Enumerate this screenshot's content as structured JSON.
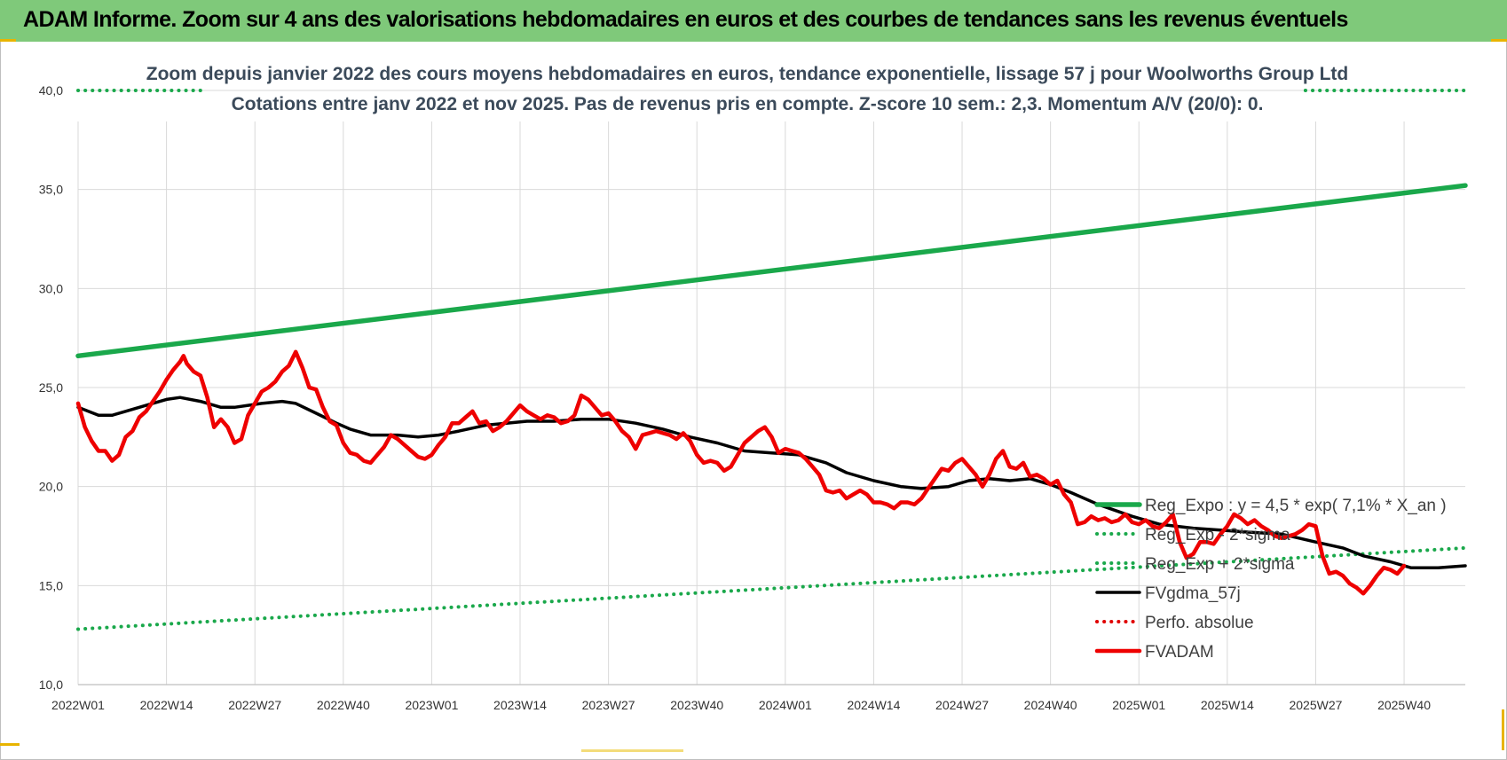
{
  "header": {
    "title": "ADAM Informe. Zoom sur 4 ans des valorisations hebdomadaires en euros et des courbes de tendances sans les revenus éventuels"
  },
  "chart_data": {
    "type": "line",
    "title_lines": [
      "Zoom depuis janvier 2022 des cours moyens hebdomadaires en euros, tendance exponentielle, lissage 57 j pour Woolworths Group Ltd",
      "Cotations entre janv 2022 et nov 2025. Pas de revenus pris en compte. Z-score 10 sem.: 2,3. Momentum A/V (20/0): 0."
    ],
    "ylim": [
      10,
      40
    ],
    "y_ticks": [
      "10,0",
      "15,0",
      "20,0",
      "25,0",
      "30,0",
      "35,0",
      "40,0"
    ],
    "y_tick_values": [
      10,
      15,
      20,
      25,
      30,
      35,
      40
    ],
    "x_range_weeks": [
      0,
      204
    ],
    "x_ticks": [
      "2022W01",
      "2022W14",
      "2022W27",
      "2022W40",
      "2023W01",
      "2023W14",
      "2023W27",
      "2023W40",
      "2024W01",
      "2024W14",
      "2024W27",
      "2024W40",
      "2025W01",
      "2025W14",
      "2025W27",
      "2025W40"
    ],
    "x_tick_weeks": [
      0,
      13,
      26,
      39,
      52,
      65,
      78,
      91,
      104,
      117,
      130,
      143,
      156,
      169,
      182,
      195
    ],
    "grid": true,
    "legend_position": "bottom-right",
    "colors": {
      "reg_expo": "#1aa84b",
      "sigma_bands": "#1aa84b",
      "fvgdma": "#000000",
      "perfo": "#e00000",
      "fvadam": "#ee0000",
      "accent": "#e8b400"
    },
    "series": [
      {
        "name": "Reg_Expo : y = 4,5 * exp( 7,1% *  X_an )",
        "style": "solid-thick",
        "color": "#1aa84b",
        "x_weeks": [
          0,
          204
        ],
        "values": [
          26.6,
          35.2
        ]
      },
      {
        "name": "Reg_Exp - 2*sigma",
        "style": "dotted",
        "color": "#1aa84b",
        "x_weeks": [
          0,
          204
        ],
        "values": [
          12.8,
          16.9
        ]
      },
      {
        "name": "Reg_Exp + 2*sigma",
        "style": "dotted",
        "color": "#1aa84b",
        "segments": [
          {
            "x_weeks": [
              0,
              18.5
            ],
            "values": [
              40.0,
              40.0
            ]
          },
          {
            "x_weeks": [
              180.5,
              204
            ],
            "values": [
              40.0,
              40.0
            ]
          }
        ]
      },
      {
        "name": "FVgdma_57j",
        "style": "solid",
        "color": "#000000",
        "points": [
          [
            0,
            24.0
          ],
          [
            3,
            23.6
          ],
          [
            5,
            23.6
          ],
          [
            7,
            23.8
          ],
          [
            10,
            24.1
          ],
          [
            13,
            24.4
          ],
          [
            15,
            24.5
          ],
          [
            18,
            24.3
          ],
          [
            21,
            24.0
          ],
          [
            23,
            24.0
          ],
          [
            25,
            24.1
          ],
          [
            27,
            24.2
          ],
          [
            30,
            24.3
          ],
          [
            32,
            24.2
          ],
          [
            35,
            23.7
          ],
          [
            38,
            23.2
          ],
          [
            40,
            22.9
          ],
          [
            43,
            22.6
          ],
          [
            47,
            22.6
          ],
          [
            50,
            22.5
          ],
          [
            53,
            22.6
          ],
          [
            56,
            22.8
          ],
          [
            60,
            23.1
          ],
          [
            63,
            23.2
          ],
          [
            66,
            23.3
          ],
          [
            70,
            23.3
          ],
          [
            74,
            23.4
          ],
          [
            78,
            23.4
          ],
          [
            82,
            23.2
          ],
          [
            86,
            22.9
          ],
          [
            90,
            22.5
          ],
          [
            94,
            22.2
          ],
          [
            98,
            21.8
          ],
          [
            102,
            21.7
          ],
          [
            106,
            21.6
          ],
          [
            110,
            21.2
          ],
          [
            113,
            20.7
          ],
          [
            117,
            20.3
          ],
          [
            121,
            20.0
          ],
          [
            124,
            19.9
          ],
          [
            128,
            20.0
          ],
          [
            131,
            20.3
          ],
          [
            134,
            20.4
          ],
          [
            137,
            20.3
          ],
          [
            140,
            20.4
          ],
          [
            143,
            20.1
          ],
          [
            146,
            19.7
          ],
          [
            150,
            19.1
          ],
          [
            155,
            18.5
          ],
          [
            159,
            18.1
          ],
          [
            164,
            17.9
          ],
          [
            168,
            17.8
          ],
          [
            172,
            17.7
          ],
          [
            177,
            17.6
          ],
          [
            182,
            17.2
          ],
          [
            186,
            16.9
          ],
          [
            189,
            16.5
          ],
          [
            193,
            16.2
          ],
          [
            196,
            15.9
          ],
          [
            200,
            15.9
          ],
          [
            204,
            16.0
          ]
        ]
      },
      {
        "name": "Perfo. absolue",
        "style": "dotted",
        "color": "#e00000",
        "points": []
      },
      {
        "name": "FVADAM",
        "style": "solid-thick",
        "color": "#ee0000",
        "points": [
          [
            0,
            24.2
          ],
          [
            1,
            23.0
          ],
          [
            2,
            22.3
          ],
          [
            3,
            21.8
          ],
          [
            4,
            21.8
          ],
          [
            5,
            21.3
          ],
          [
            6,
            21.6
          ],
          [
            7,
            22.5
          ],
          [
            8,
            22.8
          ],
          [
            9,
            23.5
          ],
          [
            10,
            23.8
          ],
          [
            11,
            24.3
          ],
          [
            12,
            24.8
          ],
          [
            13,
            25.4
          ],
          [
            14,
            25.9
          ],
          [
            15,
            26.3
          ],
          [
            15.5,
            26.6
          ],
          [
            16,
            26.2
          ],
          [
            17,
            25.8
          ],
          [
            18,
            25.6
          ],
          [
            19,
            24.5
          ],
          [
            20,
            23.0
          ],
          [
            21,
            23.4
          ],
          [
            22,
            23.0
          ],
          [
            23,
            22.2
          ],
          [
            24,
            22.4
          ],
          [
            25,
            23.6
          ],
          [
            26,
            24.2
          ],
          [
            27,
            24.8
          ],
          [
            28,
            25.0
          ],
          [
            29,
            25.3
          ],
          [
            30,
            25.8
          ],
          [
            31,
            26.1
          ],
          [
            32,
            26.8
          ],
          [
            33,
            26.0
          ],
          [
            34,
            25.0
          ],
          [
            35,
            24.9
          ],
          [
            36,
            24.0
          ],
          [
            37,
            23.3
          ],
          [
            38,
            23.1
          ],
          [
            39,
            22.2
          ],
          [
            40,
            21.7
          ],
          [
            41,
            21.6
          ],
          [
            42,
            21.3
          ],
          [
            43,
            21.2
          ],
          [
            44,
            21.6
          ],
          [
            45,
            22.0
          ],
          [
            46,
            22.6
          ],
          [
            47,
            22.4
          ],
          [
            48,
            22.1
          ],
          [
            49,
            21.8
          ],
          [
            50,
            21.5
          ],
          [
            51,
            21.4
          ],
          [
            52,
            21.6
          ],
          [
            53,
            22.1
          ],
          [
            54,
            22.5
          ],
          [
            55,
            23.2
          ],
          [
            56,
            23.2
          ],
          [
            57,
            23.5
          ],
          [
            58,
            23.8
          ],
          [
            59,
            23.2
          ],
          [
            60,
            23.3
          ],
          [
            61,
            22.8
          ],
          [
            62,
            23.0
          ],
          [
            63,
            23.3
          ],
          [
            64,
            23.7
          ],
          [
            65,
            24.1
          ],
          [
            66,
            23.8
          ],
          [
            67,
            23.6
          ],
          [
            68,
            23.4
          ],
          [
            69,
            23.6
          ],
          [
            70,
            23.5
          ],
          [
            71,
            23.2
          ],
          [
            72,
            23.3
          ],
          [
            73,
            23.6
          ],
          [
            74,
            24.6
          ],
          [
            75,
            24.4
          ],
          [
            76,
            24.0
          ],
          [
            77,
            23.6
          ],
          [
            78,
            23.7
          ],
          [
            79,
            23.3
          ],
          [
            80,
            22.8
          ],
          [
            81,
            22.5
          ],
          [
            82,
            21.9
          ],
          [
            83,
            22.6
          ],
          [
            84,
            22.7
          ],
          [
            85,
            22.8
          ],
          [
            86,
            22.7
          ],
          [
            87,
            22.6
          ],
          [
            88,
            22.4
          ],
          [
            89,
            22.7
          ],
          [
            90,
            22.3
          ],
          [
            91,
            21.6
          ],
          [
            92,
            21.2
          ],
          [
            93,
            21.3
          ],
          [
            94,
            21.2
          ],
          [
            95,
            20.8
          ],
          [
            96,
            21.0
          ],
          [
            97,
            21.6
          ],
          [
            98,
            22.2
          ],
          [
            99,
            22.5
          ],
          [
            100,
            22.8
          ],
          [
            101,
            23.0
          ],
          [
            102,
            22.5
          ],
          [
            103,
            21.7
          ],
          [
            104,
            21.9
          ],
          [
            105,
            21.8
          ],
          [
            106,
            21.7
          ],
          [
            107,
            21.4
          ],
          [
            108,
            21.0
          ],
          [
            109,
            20.6
          ],
          [
            110,
            19.8
          ],
          [
            111,
            19.7
          ],
          [
            112,
            19.8
          ],
          [
            113,
            19.4
          ],
          [
            114,
            19.6
          ],
          [
            115,
            19.8
          ],
          [
            116,
            19.6
          ],
          [
            117,
            19.2
          ],
          [
            118,
            19.2
          ],
          [
            119,
            19.1
          ],
          [
            120,
            18.9
          ],
          [
            121,
            19.2
          ],
          [
            122,
            19.2
          ],
          [
            123,
            19.1
          ],
          [
            124,
            19.4
          ],
          [
            125,
            19.9
          ],
          [
            126,
            20.4
          ],
          [
            127,
            20.9
          ],
          [
            128,
            20.8
          ],
          [
            129,
            21.2
          ],
          [
            130,
            21.4
          ],
          [
            131,
            21.0
          ],
          [
            132,
            20.6
          ],
          [
            133,
            20.0
          ],
          [
            134,
            20.6
          ],
          [
            135,
            21.4
          ],
          [
            136,
            21.8
          ],
          [
            137,
            21.0
          ],
          [
            138,
            20.9
          ],
          [
            139,
            21.2
          ],
          [
            140,
            20.5
          ],
          [
            141,
            20.6
          ],
          [
            142,
            20.4
          ],
          [
            143,
            20.1
          ],
          [
            144,
            20.3
          ],
          [
            145,
            19.6
          ],
          [
            146,
            19.2
          ],
          [
            147,
            18.1
          ],
          [
            148,
            18.2
          ],
          [
            149,
            18.5
          ],
          [
            150,
            18.3
          ],
          [
            151,
            18.4
          ],
          [
            152,
            18.2
          ],
          [
            153,
            18.3
          ],
          [
            154,
            18.6
          ],
          [
            155,
            18.2
          ],
          [
            156,
            18.1
          ],
          [
            157,
            18.3
          ],
          [
            158,
            18.0
          ],
          [
            159,
            17.9
          ],
          [
            160,
            18.2
          ],
          [
            161,
            18.6
          ],
          [
            162,
            17.2
          ],
          [
            163,
            16.4
          ],
          [
            164,
            16.6
          ],
          [
            165,
            17.2
          ],
          [
            166,
            17.2
          ],
          [
            167,
            17.1
          ],
          [
            168,
            17.6
          ],
          [
            169,
            18.0
          ],
          [
            170,
            18.6
          ],
          [
            171,
            18.4
          ],
          [
            172,
            18.1
          ],
          [
            173,
            18.3
          ],
          [
            174,
            18.0
          ],
          [
            175,
            17.8
          ],
          [
            176,
            17.5
          ],
          [
            177,
            17.4
          ],
          [
            178,
            17.5
          ],
          [
            179,
            17.6
          ],
          [
            180,
            17.8
          ],
          [
            181,
            18.1
          ],
          [
            182,
            18.0
          ],
          [
            183,
            16.5
          ],
          [
            184,
            15.6
          ],
          [
            185,
            15.7
          ],
          [
            186,
            15.5
          ],
          [
            187,
            15.1
          ],
          [
            188,
            14.9
          ],
          [
            189,
            14.6
          ],
          [
            190,
            15.0
          ],
          [
            191,
            15.5
          ],
          [
            192,
            15.9
          ],
          [
            193,
            15.8
          ],
          [
            194,
            15.6
          ],
          [
            195,
            16.0
          ]
        ]
      }
    ]
  }
}
